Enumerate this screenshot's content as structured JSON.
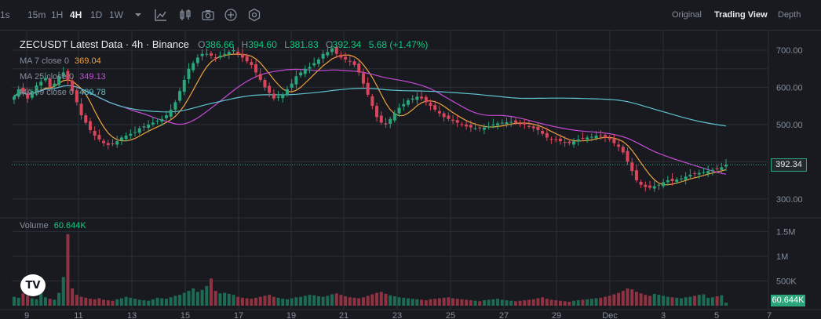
{
  "toolbar": {
    "intervals": [
      "1s",
      "15m",
      "1H",
      "4H",
      "1D",
      "1W"
    ],
    "active_interval": "4H",
    "dropdown_icon": "chevron-down-icon",
    "tools": [
      "indicator-icon",
      "candle-type-icon",
      "screenshot-icon",
      "add-icon",
      "settings-icon"
    ],
    "views": [
      "Original",
      "Trading View",
      "Depth"
    ],
    "active_view": "Trading View"
  },
  "legend": {
    "symbol": "ZECUSDT Latest Data · 4h · Binance",
    "o_label": "O",
    "o": "386.66",
    "h_label": "H",
    "h": "394.60",
    "l_label": "L",
    "l": "381.83",
    "c_label": "C",
    "c": "392.34",
    "change": "5.68 (+1.47%)"
  },
  "moving_averages": [
    {
      "label": "MA 7 close 0",
      "value": "369.04",
      "color": "#f0a33e"
    },
    {
      "label": "MA 25 close 0",
      "value": "349.13",
      "color": "#c64bd4"
    },
    {
      "label": "MA 99 close 0",
      "value": "489.78",
      "color": "#5fc3cf"
    }
  ],
  "volume": {
    "label": "Volume",
    "value": "60.644K"
  },
  "price_tag": "392.34",
  "volume_tag": "60.644K",
  "colors": {
    "up": "#2aa67a",
    "down": "#d9465b",
    "bg": "#181a20",
    "grid": "#2b2f36"
  },
  "logo_text": "TV",
  "chart_data": {
    "type": "candlestick",
    "title": "ZECUSDT Latest Data · 4h · Binance",
    "x_ticks": [
      "9",
      "11",
      "13",
      "15",
      "17",
      "19",
      "21",
      "23",
      "25",
      "27",
      "29",
      "Dec",
      "3",
      "5",
      "7"
    ],
    "price_ticks": [
      "700.00",
      "600.00",
      "500.00",
      "300.00"
    ],
    "volume_ticks": [
      "1.5M",
      "1M",
      "500K"
    ],
    "price_ylim": [
      270,
      740
    ],
    "volume_ylim": [
      0,
      1700000
    ],
    "grid": true,
    "closes": [
      575,
      595,
      585,
      570,
      590,
      605,
      615,
      625,
      600,
      610,
      630,
      640,
      620,
      590,
      560,
      525,
      505,
      485,
      470,
      460,
      450,
      445,
      448,
      455,
      465,
      470,
      475,
      480,
      490,
      495,
      500,
      505,
      510,
      515,
      525,
      540,
      560,
      590,
      620,
      650,
      665,
      680,
      690,
      690,
      685,
      680,
      685,
      690,
      695,
      700,
      690,
      680,
      670,
      660,
      640,
      620,
      600,
      585,
      570,
      575,
      580,
      595,
      610,
      630,
      640,
      650,
      655,
      665,
      675,
      690,
      695,
      705,
      690,
      680,
      675,
      670,
      660,
      640,
      610,
      580,
      550,
      520,
      505,
      500,
      515,
      530,
      545,
      555,
      565,
      570,
      575,
      570,
      560,
      550,
      540,
      530,
      520,
      515,
      510,
      505,
      500,
      495,
      492,
      490,
      490,
      492,
      495,
      500,
      503,
      505,
      506,
      507,
      505,
      502,
      500,
      495,
      490,
      485,
      475,
      465,
      460,
      458,
      455,
      452,
      450,
      455,
      460,
      462,
      465,
      467,
      470,
      468,
      465,
      460,
      450,
      440,
      425,
      400,
      375,
      350,
      338,
      332,
      330,
      334,
      338,
      345,
      350,
      348,
      352,
      355,
      360,
      365,
      368,
      370,
      372,
      375,
      378,
      380,
      385,
      392
    ],
    "volumes": [
      180000,
      160000,
      250000,
      200000,
      150000,
      130000,
      320000,
      170000,
      140000,
      120000,
      260000,
      580000,
      1450000,
      350000,
      220000,
      180000,
      160000,
      140000,
      130000,
      150000,
      120000,
      110000,
      100000,
      130000,
      150000,
      180000,
      160000,
      140000,
      120000,
      110000,
      100000,
      130000,
      160000,
      150000,
      140000,
      170000,
      200000,
      220000,
      260000,
      300000,
      350000,
      280000,
      320000,
      400000,
      550000,
      300000,
      250000,
      260000,
      240000,
      220000,
      180000,
      160000,
      150000,
      140000,
      160000,
      180000,
      200000,
      220000,
      180000,
      160000,
      140000,
      130000,
      150000,
      170000,
      180000,
      200000,
      220000,
      210000,
      190000,
      180000,
      200000,
      230000,
      250000,
      220000,
      190000,
      170000,
      160000,
      150000,
      170000,
      200000,
      230000,
      260000,
      280000,
      240000,
      210000,
      190000,
      170000,
      160000,
      150000,
      140000,
      130000,
      120000,
      110000,
      130000,
      140000,
      150000,
      160000,
      170000,
      150000,
      140000,
      130000,
      120000,
      110000,
      100000,
      90000,
      110000,
      120000,
      130000,
      140000,
      120000,
      110000,
      100000,
      90000,
      100000,
      110000,
      120000,
      130000,
      150000,
      170000,
      140000,
      120000,
      110000,
      100000,
      90000,
      80000,
      100000,
      110000,
      120000,
      130000,
      140000,
      150000,
      160000,
      180000,
      200000,
      230000,
      260000,
      300000,
      350000,
      330000,
      280000,
      250000,
      220000,
      200000,
      240000,
      220000,
      200000,
      180000,
      170000,
      160000,
      150000,
      170000,
      180000,
      200000,
      220000,
      230000,
      160000,
      170000,
      190000,
      210000,
      60644
    ]
  }
}
